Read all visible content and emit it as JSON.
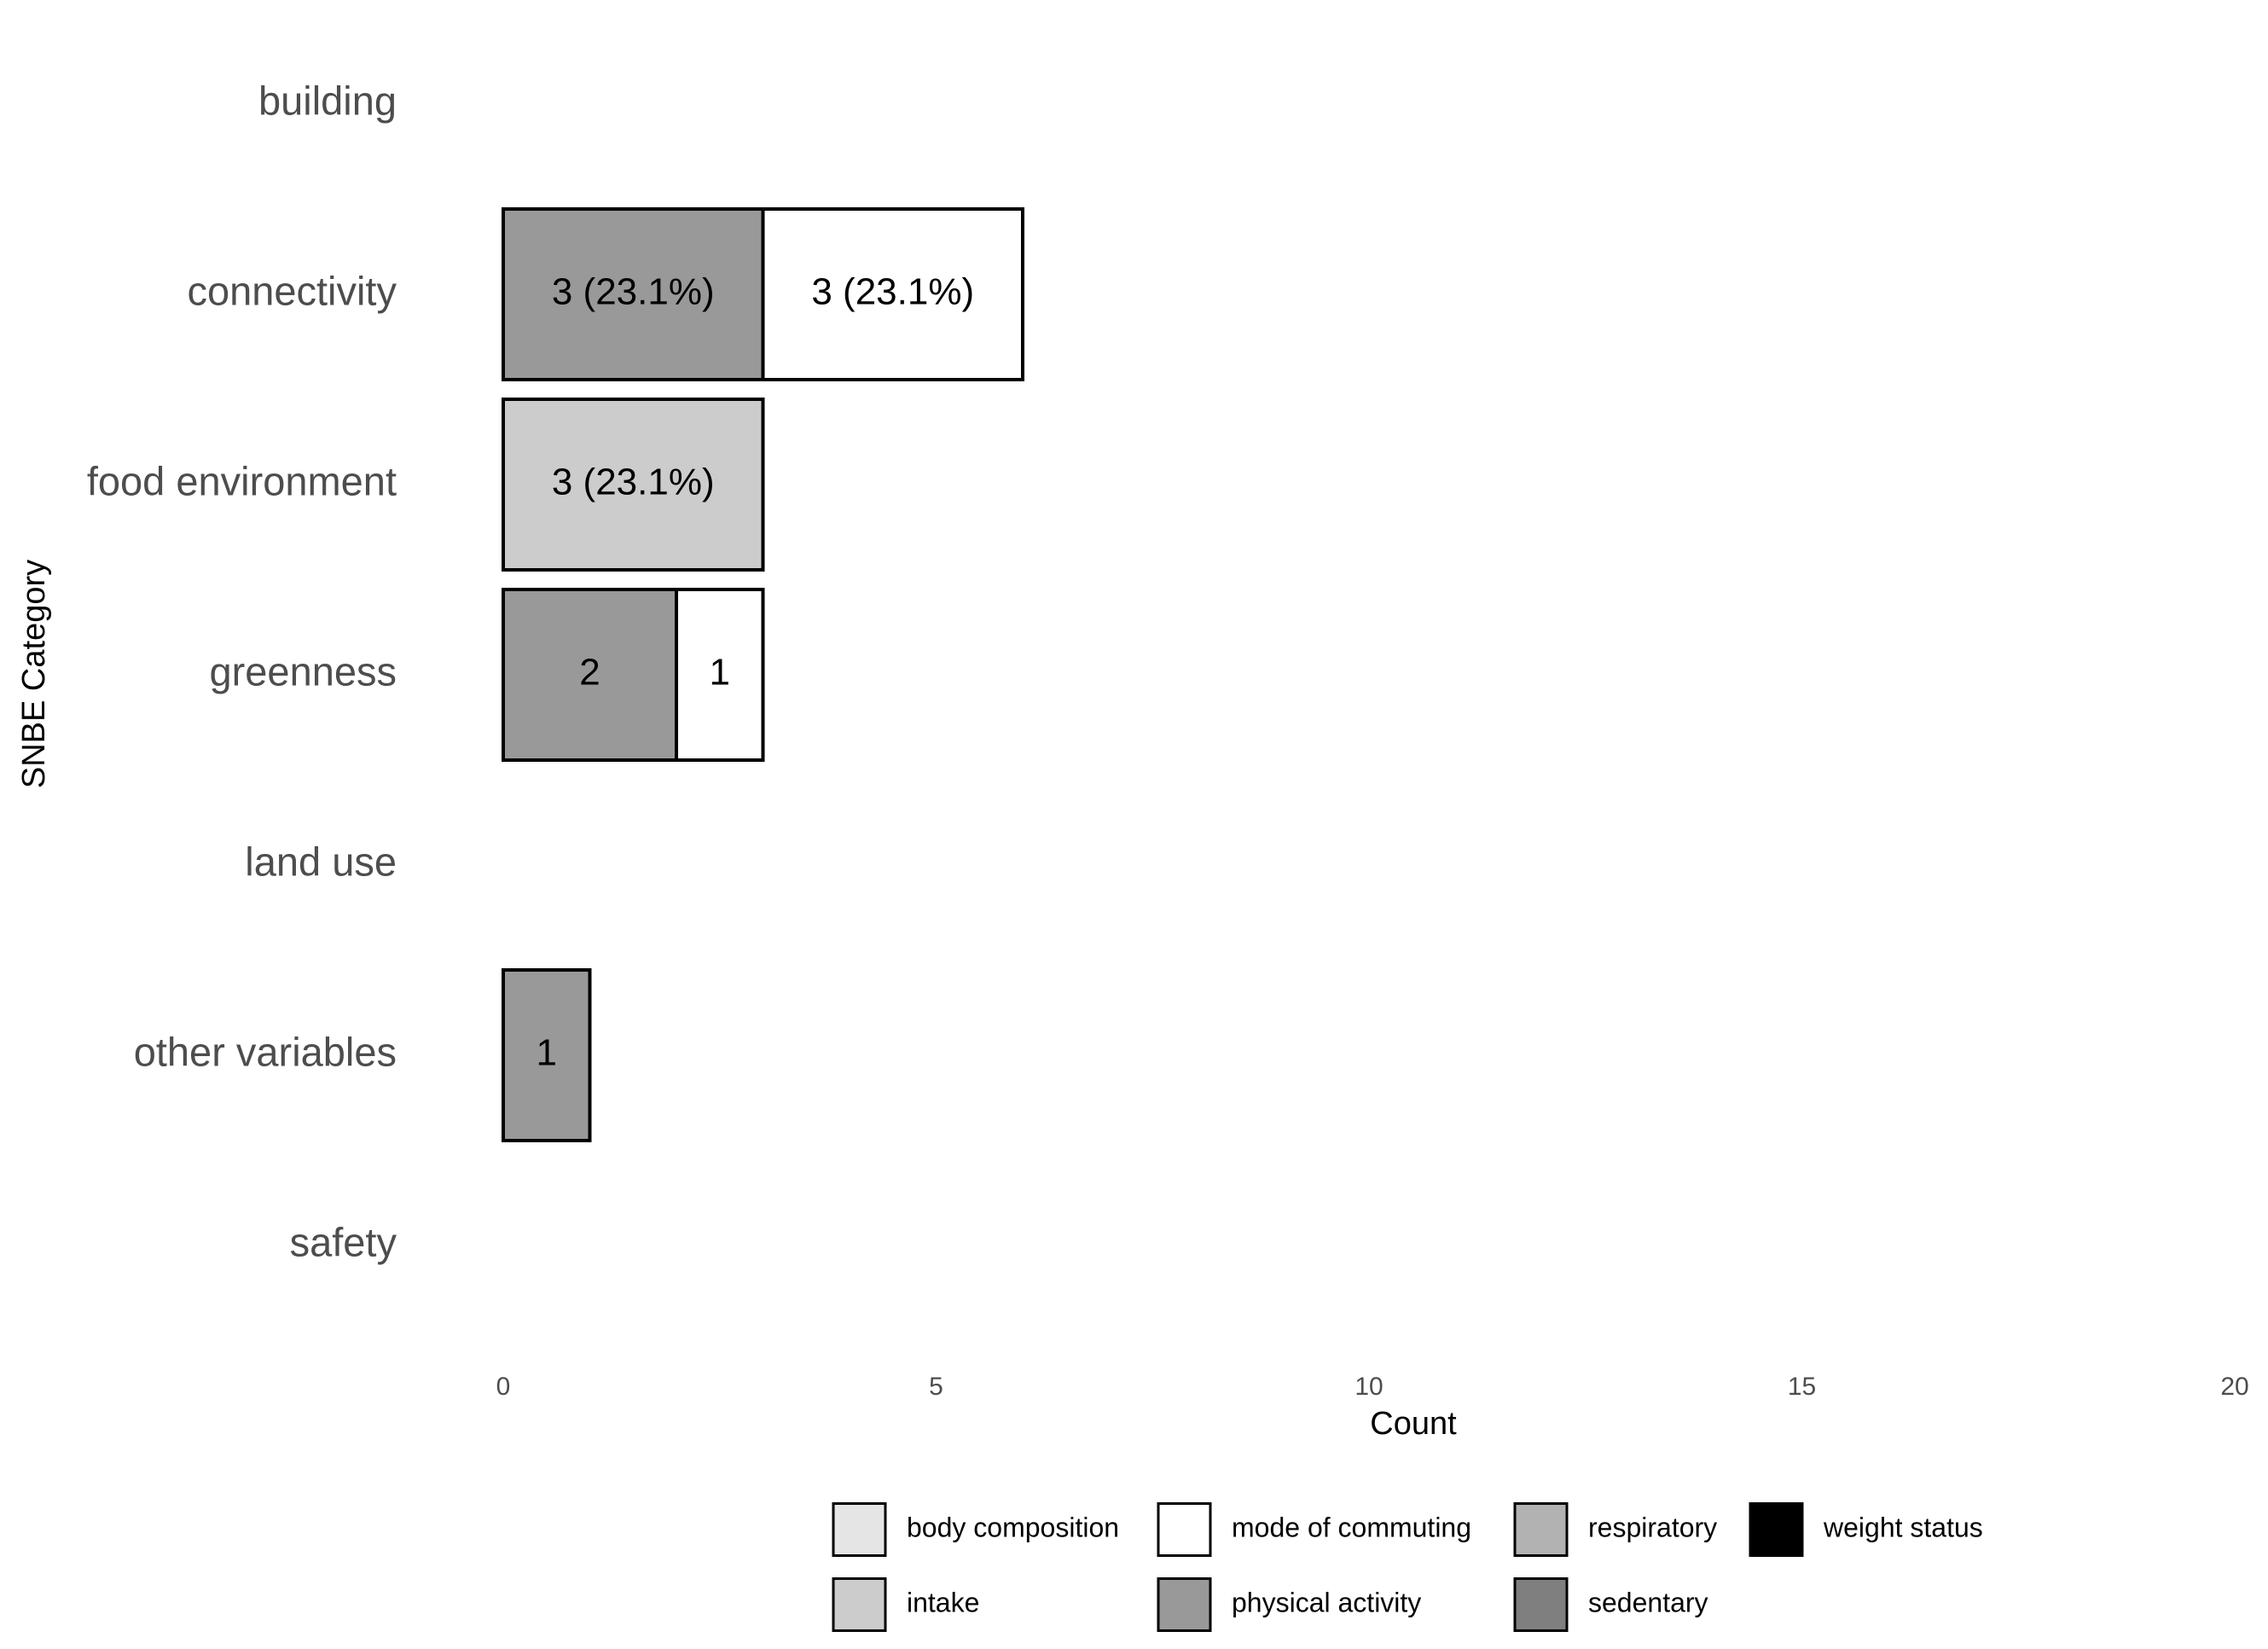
{
  "chart_data": {
    "type": "stacked_barh",
    "x_label": "Count",
    "y_label": "SNBE Category",
    "categories": [
      "building",
      "connectivity",
      "food environment",
      "greenness",
      "land use",
      "other variables",
      "safety"
    ],
    "xlim": [
      0,
      20
    ],
    "xticks": [
      0,
      5,
      10,
      15,
      20
    ],
    "grid": false,
    "legend": "bottom",
    "series": [
      {
        "name": "body composition",
        "color": "#e5e5e5",
        "values": [
          null,
          null,
          null,
          null,
          null,
          null,
          null
        ]
      },
      {
        "name": "intake",
        "color": "#cccccc",
        "values": [
          null,
          null,
          3,
          null,
          null,
          null,
          null
        ],
        "value_labels": [
          null,
          null,
          "3 (23.1%)",
          null,
          null,
          null,
          null
        ]
      },
      {
        "name": "mode of commuting",
        "color": "#ffffff",
        "values": [
          null,
          3,
          null,
          1,
          null,
          null,
          null
        ],
        "value_labels": [
          null,
          "3 (23.1%)",
          null,
          "1",
          null,
          null,
          null
        ]
      },
      {
        "name": "physical activity",
        "color": "#999999",
        "values": [
          null,
          3,
          null,
          2,
          null,
          1,
          null
        ],
        "value_labels": [
          null,
          "3 (23.1%)",
          null,
          "2",
          null,
          "1",
          null
        ]
      },
      {
        "name": "respiratory",
        "color": "#b2b2b2",
        "values": [
          null,
          null,
          null,
          null,
          null,
          null,
          null
        ]
      },
      {
        "name": "sedentary",
        "color": "#7f7f7f",
        "values": [
          null,
          null,
          null,
          null,
          null,
          null,
          null
        ]
      },
      {
        "name": "weight status",
        "color": "#000000",
        "values": [
          0,
          null,
          null,
          null,
          0,
          null,
          0
        ]
      }
    ]
  }
}
